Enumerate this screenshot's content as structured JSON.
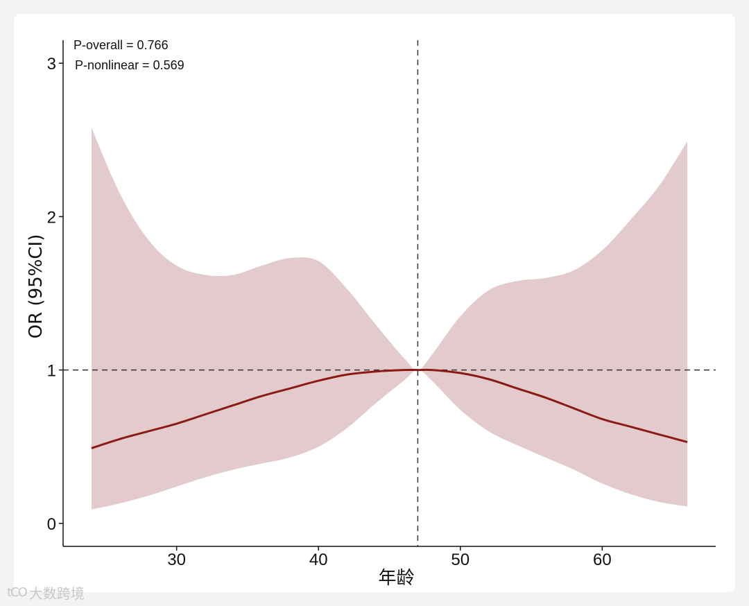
{
  "chart_data": {
    "type": "line",
    "xlabel": "年龄",
    "ylabel": "OR (95%CI)",
    "xlim": [
      22,
      68
    ],
    "ylim": [
      -0.15,
      3.15
    ],
    "x_ticks": [
      30,
      40,
      50,
      60
    ],
    "y_ticks": [
      0,
      1,
      2,
      3
    ],
    "reference_x": 47,
    "reference_y": 1,
    "annotations": [
      "P-overall = 0.766",
      "P-nonlinear = 0.569"
    ],
    "series": [
      {
        "x": [
          24,
          26,
          28,
          30,
          32,
          34,
          36,
          38,
          40,
          42,
          44,
          46,
          47,
          48,
          50,
          52,
          54,
          56,
          58,
          60,
          62,
          64,
          66
        ],
        "y": [
          0.49,
          0.55,
          0.6,
          0.65,
          0.71,
          0.77,
          0.83,
          0.88,
          0.93,
          0.97,
          0.99,
          1.0,
          1.0,
          1.0,
          0.98,
          0.94,
          0.88,
          0.82,
          0.75,
          0.68,
          0.63,
          0.58,
          0.53
        ],
        "lower": [
          0.09,
          0.13,
          0.18,
          0.24,
          0.3,
          0.35,
          0.39,
          0.43,
          0.5,
          0.62,
          0.78,
          0.93,
          1.0,
          0.93,
          0.74,
          0.6,
          0.51,
          0.43,
          0.35,
          0.26,
          0.19,
          0.14,
          0.11
        ],
        "upper": [
          2.58,
          2.15,
          1.85,
          1.68,
          1.62,
          1.62,
          1.68,
          1.73,
          1.71,
          1.53,
          1.3,
          1.08,
          1.0,
          1.1,
          1.35,
          1.52,
          1.58,
          1.6,
          1.65,
          1.78,
          1.98,
          2.2,
          2.49
        ]
      }
    ],
    "colors": {
      "line": "#8B1A14",
      "ribbon": "#E3CACC",
      "ref_line": "#333333"
    }
  },
  "watermark": {
    "logo": "tCO",
    "text": "大数跨境"
  }
}
